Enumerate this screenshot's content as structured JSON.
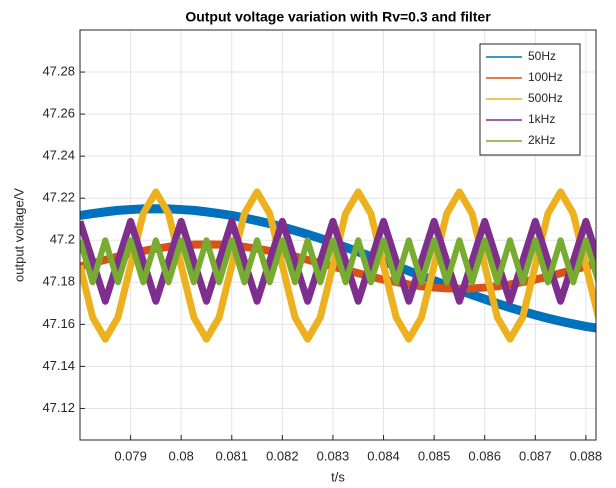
{
  "chart_data": {
    "type": "line",
    "title": "Output voltage variation with Rv=0.3 and filter",
    "x_label": "t/s",
    "y_label": "output voltage/V",
    "x": [
      0.078,
      0.07825,
      0.0785,
      0.07875,
      0.079,
      0.07925,
      0.0795,
      0.07975,
      0.08,
      0.08025,
      0.0805,
      0.08075,
      0.081,
      0.08125,
      0.0815,
      0.08175,
      0.082,
      0.08225,
      0.0825,
      0.08275,
      0.083,
      0.08325,
      0.0835,
      0.08375,
      0.084,
      0.08425,
      0.0845,
      0.08475,
      0.085,
      0.08525,
      0.0855,
      0.08575,
      0.086,
      0.08625,
      0.0865,
      0.08675,
      0.087,
      0.08725,
      0.0875,
      0.08775,
      0.088,
      0.08825
    ],
    "series": [
      {
        "name": "50Hz",
        "color": "#0072BD",
        "values": [
          47.2118,
          47.2127,
          47.2135,
          47.2142,
          47.2146,
          47.2149,
          47.215,
          47.2149,
          47.2146,
          47.2142,
          47.2135,
          47.2127,
          47.2118,
          47.2106,
          47.2093,
          47.2079,
          47.2063,
          47.2046,
          47.2028,
          47.2009,
          47.1988,
          47.1967,
          47.1945,
          47.1923,
          47.19,
          47.1877,
          47.1854,
          47.1831,
          47.1808,
          47.1785,
          47.1763,
          47.1741,
          47.172,
          47.1699,
          47.168,
          47.1662,
          47.1645,
          47.1629,
          47.1615,
          47.1602,
          47.159,
          47.1581
        ]
      },
      {
        "name": "100Hz",
        "color": "#D95319",
        "values": [
          47.1875,
          47.1891,
          47.1907,
          47.1923,
          47.1937,
          47.1949,
          47.196,
          47.1969,
          47.1975,
          47.1979,
          47.198,
          47.1979,
          47.1975,
          47.1969,
          47.196,
          47.1949,
          47.1937,
          47.1923,
          47.1907,
          47.1891,
          47.1875,
          47.1859,
          47.1843,
          47.1827,
          47.1813,
          47.1801,
          47.179,
          47.1781,
          47.1775,
          47.1771,
          47.177,
          47.1771,
          47.1775,
          47.1781,
          47.179,
          47.1801,
          47.1813,
          47.1827,
          47.1843,
          47.1859,
          47.1875,
          47.1891
        ]
      },
      {
        "name": "500Hz",
        "color": "#EDB120",
        "values": [
          47.188,
          47.1633,
          47.153,
          47.1633,
          47.188,
          47.2127,
          47.223,
          47.2127,
          47.188,
          47.1633,
          47.153,
          47.1633,
          47.188,
          47.2127,
          47.223,
          47.2127,
          47.188,
          47.1633,
          47.153,
          47.1633,
          47.188,
          47.2127,
          47.223,
          47.2127,
          47.188,
          47.1633,
          47.153,
          47.1633,
          47.188,
          47.2127,
          47.223,
          47.2127,
          47.188,
          47.1633,
          47.153,
          47.1633,
          47.188,
          47.2127,
          47.223,
          47.2127,
          47.188,
          47.1633
        ]
      },
      {
        "name": "1kHz",
        "color": "#7E2F8E",
        "values": [
          47.209,
          47.19,
          47.171,
          47.19,
          47.209,
          47.19,
          47.171,
          47.19,
          47.209,
          47.19,
          47.171,
          47.19,
          47.209,
          47.19,
          47.171,
          47.19,
          47.209,
          47.19,
          47.171,
          47.19,
          47.209,
          47.19,
          47.171,
          47.19,
          47.209,
          47.19,
          47.171,
          47.19,
          47.209,
          47.19,
          47.171,
          47.19,
          47.209,
          47.19,
          47.171,
          47.19,
          47.209,
          47.19,
          47.171,
          47.19,
          47.209,
          47.19
        ]
      },
      {
        "name": "2kHz",
        "color": "#77AC30",
        "values": [
          47.2,
          47.18,
          47.2,
          47.18,
          47.2,
          47.18,
          47.2,
          47.18,
          47.2,
          47.18,
          47.2,
          47.18,
          47.2,
          47.18,
          47.2,
          47.18,
          47.2,
          47.18,
          47.2,
          47.18,
          47.2,
          47.18,
          47.2,
          47.18,
          47.2,
          47.18,
          47.2,
          47.18,
          47.2,
          47.18,
          47.2,
          47.18,
          47.2,
          47.18,
          47.2,
          47.18,
          47.2,
          47.18,
          47.2,
          47.18,
          47.2,
          47.18
        ]
      }
    ],
    "xlim": [
      0.078,
      0.0882
    ],
    "xticks": [
      0.079,
      0.08,
      0.081,
      0.082,
      0.083,
      0.084,
      0.085,
      0.086,
      0.087,
      0.088
    ],
    "ylim": [
      47.105,
      47.3
    ],
    "yticks": [
      47.12,
      47.14,
      47.16,
      47.18,
      47.2,
      47.22,
      47.24,
      47.26,
      47.28
    ],
    "grid": true,
    "legend": "top-right"
  }
}
